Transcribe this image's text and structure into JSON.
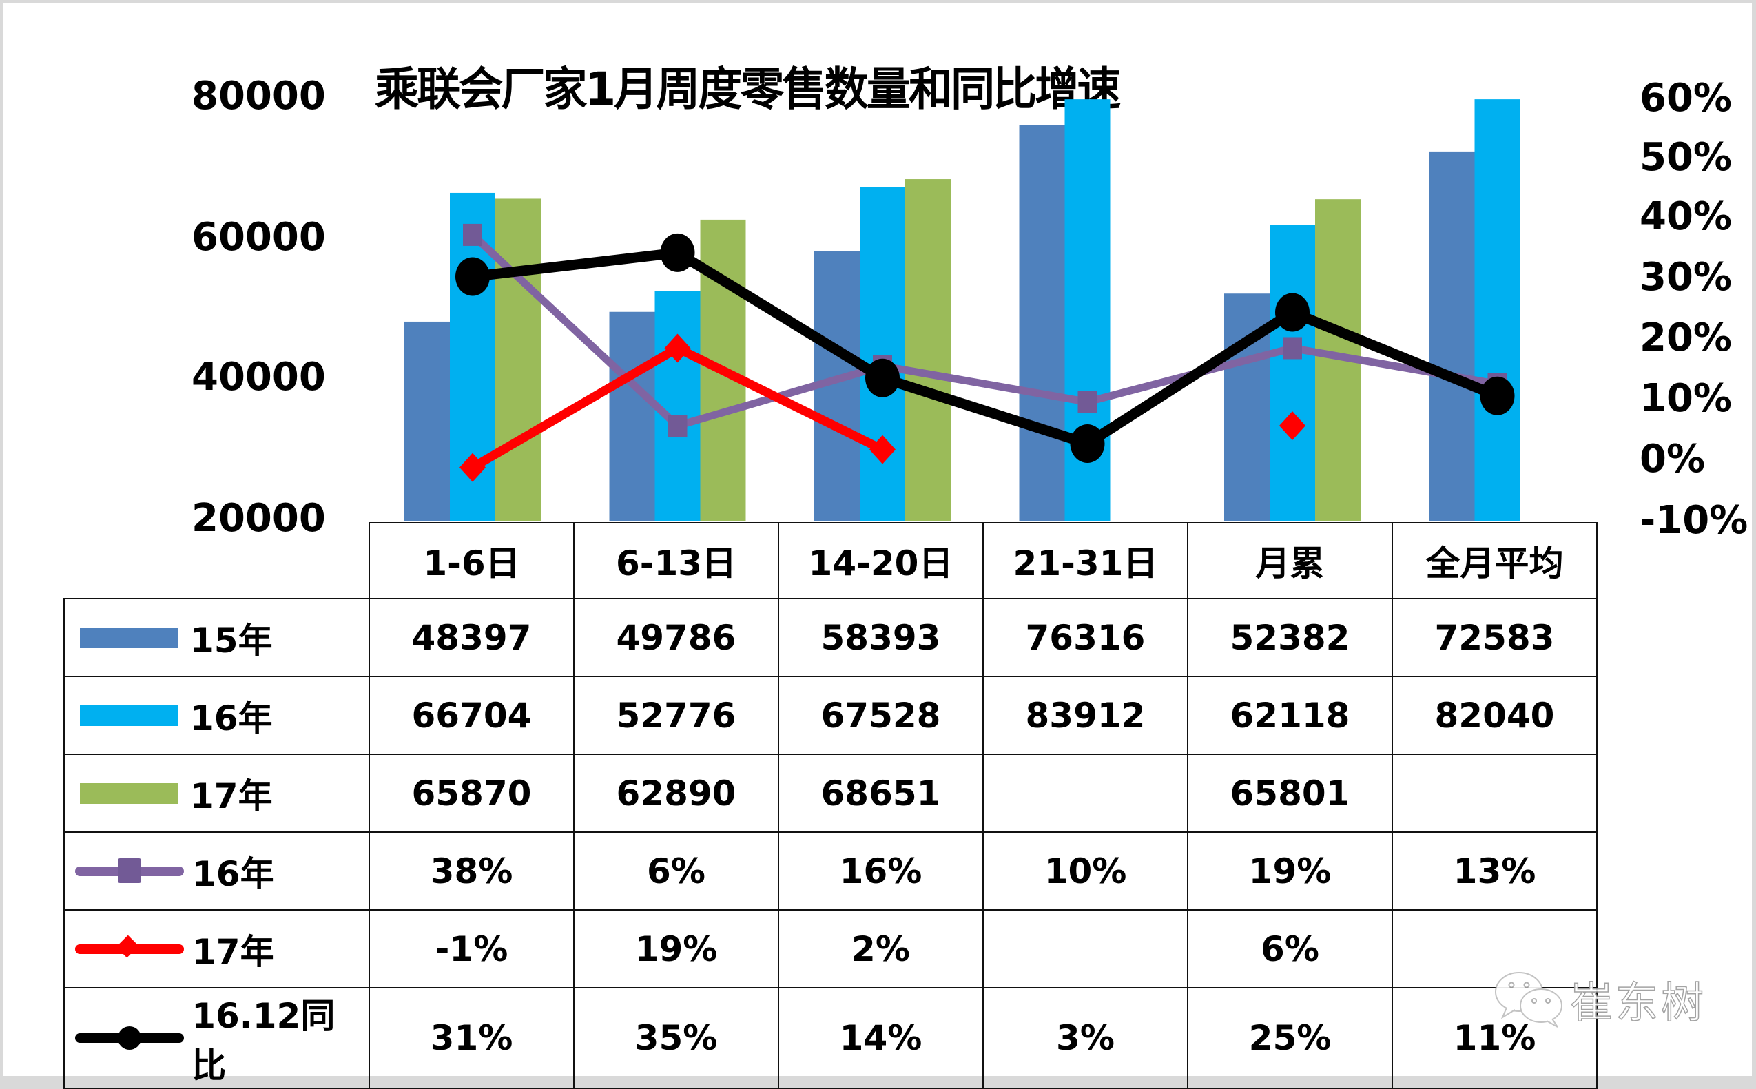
{
  "chart_data": {
    "type": "bar",
    "title": "乘联会厂家1月周度零售数量和同比增速",
    "categories": [
      "1-6日",
      "6-13日",
      "14-20日",
      "21-31日",
      "月累",
      "全月平均"
    ],
    "left_axis": {
      "ticks": [
        "80000",
        "60000",
        "40000",
        "20000"
      ],
      "ylim": [
        20000,
        80000
      ]
    },
    "right_axis": {
      "ticks": [
        "60%",
        "50%",
        "40%",
        "30%",
        "20%",
        "10%",
        "0%",
        "-10%"
      ],
      "ylim": [
        -0.1,
        0.6
      ]
    },
    "bar_series": [
      {
        "name": "15年",
        "color": "#4F81BD",
        "values": [
          48397,
          49786,
          58393,
          76316,
          52382,
          72583
        ],
        "labels": [
          "48397",
          "49786",
          "58393",
          "76316",
          "52382",
          "72583"
        ]
      },
      {
        "name": "16年",
        "color": "#00B0F0",
        "values": [
          66704,
          52776,
          67528,
          83912,
          62118,
          82040
        ],
        "labels": [
          "66704",
          "52776",
          "67528",
          "83912",
          "62118",
          "82040"
        ]
      },
      {
        "name": "17年",
        "color": "#9BBB59",
        "values": [
          65870,
          62890,
          68651,
          null,
          65801,
          null
        ],
        "labels": [
          "65870",
          "62890",
          "68651",
          "",
          "65801",
          ""
        ]
      }
    ],
    "line_series": [
      {
        "name": "16年",
        "color": "#8064A2",
        "marker": "square",
        "values": [
          0.38,
          0.06,
          0.16,
          0.1,
          0.19,
          0.13
        ],
        "labels": [
          "38%",
          "6%",
          "16%",
          "10%",
          "19%",
          "13%"
        ],
        "connect": [
          [
            0,
            5
          ]
        ]
      },
      {
        "name": "17年",
        "color": "#FF0000",
        "marker": "diamond",
        "values": [
          -0.01,
          0.19,
          0.02,
          null,
          0.06,
          null
        ],
        "labels": [
          "-1%",
          "19%",
          "2%",
          "",
          "6%",
          ""
        ],
        "connect": [
          [
            0,
            2
          ]
        ]
      },
      {
        "name": "16.12同比",
        "color": "#000000",
        "marker": "circle",
        "values": [
          0.31,
          0.35,
          0.14,
          0.03,
          0.25,
          0.11
        ],
        "labels": [
          "31%",
          "35%",
          "14%",
          "3%",
          "25%",
          "11%"
        ],
        "connect": [
          [
            0,
            5
          ]
        ]
      }
    ],
    "legend_position": "table",
    "grid": false
  },
  "watermark": {
    "icon": "wechat-icon",
    "text": "崔东树"
  }
}
